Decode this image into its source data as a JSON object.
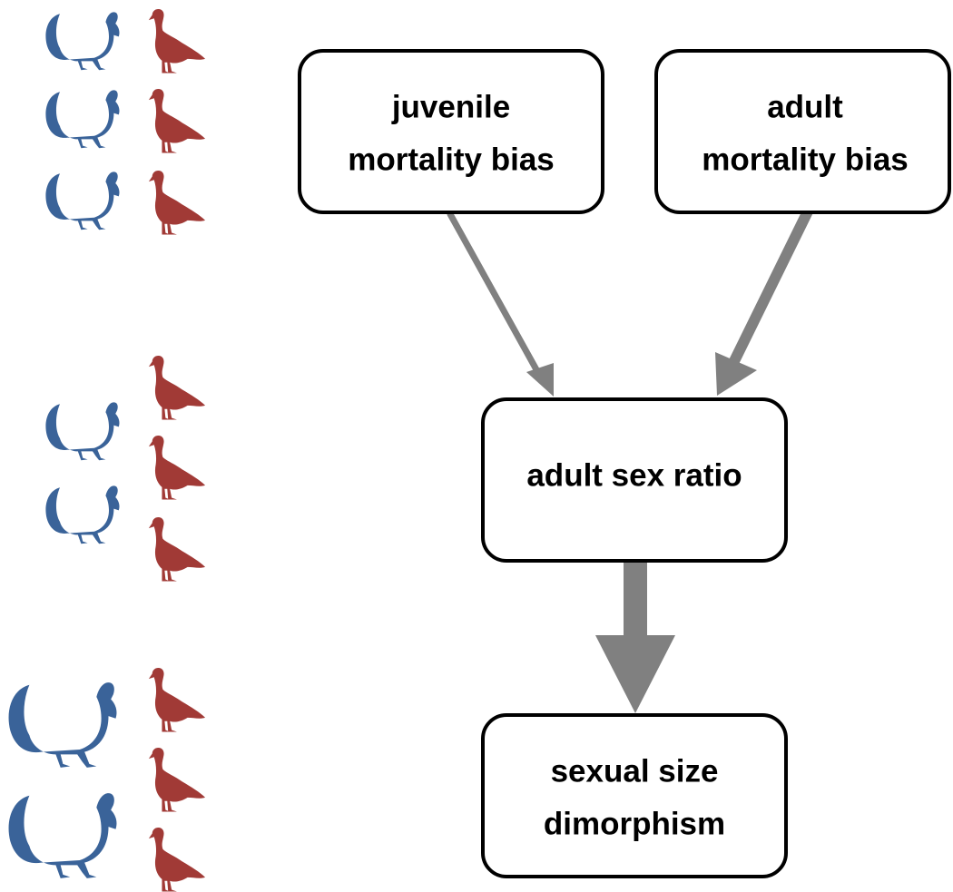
{
  "nodes": [
    {
      "lines": [
        "juvenile",
        "mortality bias"
      ]
    },
    {
      "lines": [
        "adult",
        "mortality bias"
      ]
    },
    {
      "lines": [
        "adult sex ratio"
      ]
    },
    {
      "lines": [
        "sexual size",
        "dimorphism"
      ]
    }
  ]
}
